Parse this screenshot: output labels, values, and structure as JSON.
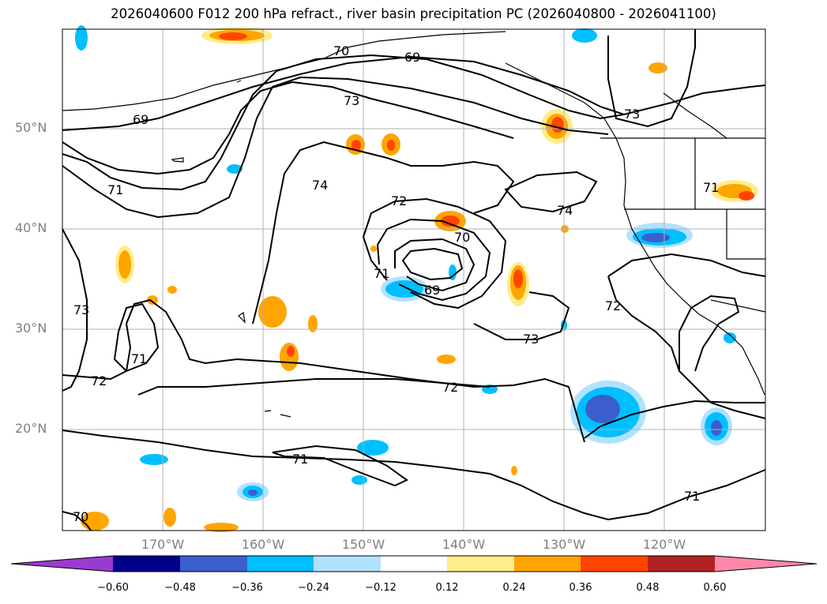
{
  "title": "2026040600 F012 200 hPa refract., river basin precipitation PC (2026040800 - 2026041100)",
  "lat_ticks": [
    "50°N",
    "40°N",
    "30°N",
    "20°N"
  ],
  "lon_ticks": [
    "170°W",
    "160°W",
    "150°W",
    "140°W",
    "130°W",
    "120°W"
  ],
  "contour_labels": [
    "70",
    "69",
    "73",
    "69",
    "73",
    "71",
    "74",
    "72",
    "74",
    "70",
    "69",
    "71",
    "73",
    "71",
    "72",
    "73",
    "72",
    "71",
    "71",
    "70",
    "72",
    "71"
  ],
  "colorbar": {
    "colors": [
      "#9b3ad0",
      "#00008b",
      "#3a5fcd",
      "#00bfff",
      "#b0e2ff",
      "#ffffff",
      "#ffec8b",
      "#ffa500",
      "#ff4500",
      "#b22222",
      "#ff88aa"
    ],
    "ticks": [
      "−0.60",
      "−0.48",
      "−0.36",
      "−0.24",
      "−0.12",
      "0.12",
      "0.24",
      "0.36",
      "0.48",
      "0.60"
    ]
  },
  "colors": {
    "contour": "#000000",
    "grid": "#b0b0b0",
    "coast": "#000000",
    "tick_text": "#7f7f7f"
  }
}
